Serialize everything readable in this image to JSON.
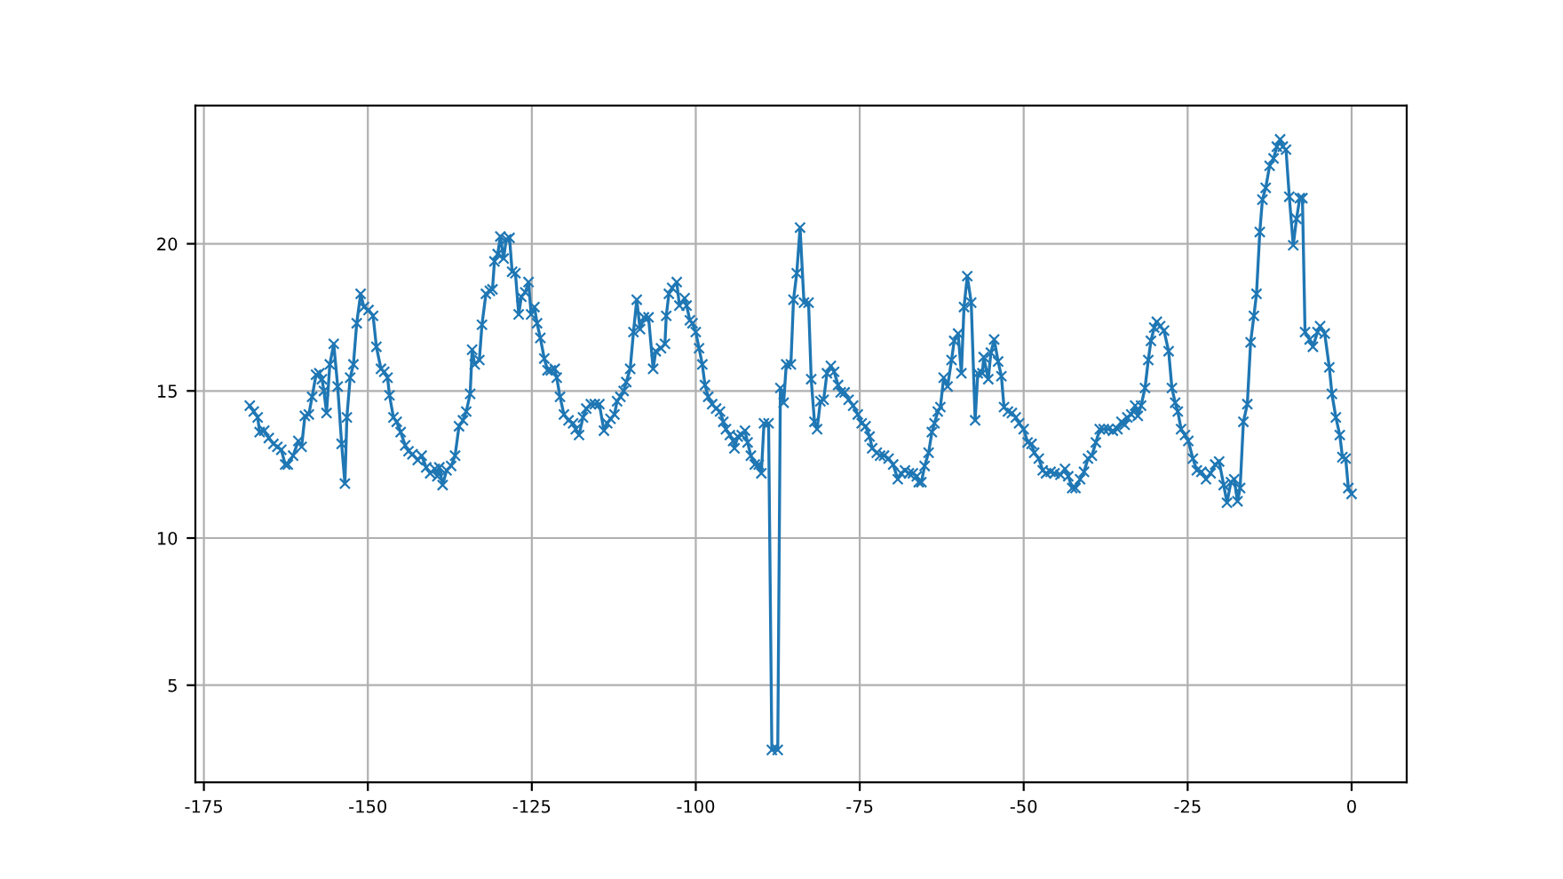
{
  "chart_data": {
    "type": "line",
    "marker": "cross",
    "line_style": "solid",
    "grid": true,
    "xlim": [
      -176.3,
      8.4
    ],
    "ylim": [
      1.7,
      24.7
    ],
    "xticks": [
      -175,
      -150,
      -125,
      -100,
      -75,
      -50,
      -25,
      0
    ],
    "yticks": [
      5,
      10,
      15,
      20
    ],
    "series": [
      {
        "color": "#1f77b4",
        "x": [
          -168.0,
          -167.4,
          -166.8,
          -166.5,
          -165.8,
          -165.1,
          -164.4,
          -163.8,
          -163.2,
          -162.6,
          -162.2,
          -161.4,
          -160.6,
          -160.1,
          -159.6,
          -159.0,
          -158.5,
          -157.9,
          -157.4,
          -157.0,
          -156.7,
          -156.3,
          -155.8,
          -155.2,
          -154.6,
          -154.0,
          -153.5,
          -153.2,
          -152.7,
          -152.2,
          -151.7,
          -151.1,
          -150.6,
          -149.9,
          -149.2,
          -148.7,
          -148.0,
          -147.5,
          -147.0,
          -146.7,
          -146.1,
          -145.6,
          -145.0,
          -144.3,
          -143.8,
          -143.2,
          -142.4,
          -141.8,
          -141.1,
          -140.5,
          -139.8,
          -139.4,
          -139.1,
          -138.6,
          -138.0,
          -137.3,
          -136.7,
          -136.1,
          -135.5,
          -135.0,
          -134.4,
          -134.1,
          -133.7,
          -133.0,
          -132.6,
          -132.0,
          -131.4,
          -131.0,
          -130.7,
          -130.2,
          -129.8,
          -129.3,
          -128.9,
          -128.4,
          -128.0,
          -127.5,
          -127.0,
          -126.6,
          -126.0,
          -125.5,
          -125.1,
          -124.6,
          -124.2,
          -123.7,
          -123.1,
          -122.6,
          -122.1,
          -121.5,
          -121.2,
          -120.7,
          -120.1,
          -119.4,
          -118.7,
          -118.3,
          -117.8,
          -117.2,
          -116.7,
          -116.0,
          -115.4,
          -114.7,
          -114.0,
          -113.5,
          -113.0,
          -112.4,
          -112.0,
          -111.5,
          -111.0,
          -110.6,
          -110.0,
          -109.5,
          -109.0,
          -108.5,
          -107.9,
          -107.2,
          -106.5,
          -106.1,
          -105.3,
          -104.7,
          -104.5,
          -104.1,
          -103.6,
          -102.9,
          -102.5,
          -101.7,
          -101.4,
          -100.9,
          -100.5,
          -100.0,
          -99.5,
          -99.0,
          -98.6,
          -98.1,
          -97.5,
          -96.9,
          -96.3,
          -95.8,
          -95.4,
          -94.8,
          -94.3,
          -94.1,
          -93.6,
          -93.0,
          -92.5,
          -92.1,
          -91.6,
          -91.0,
          -90.4,
          -90.0,
          -89.6,
          -88.9,
          -88.4,
          -87.5,
          -87.1,
          -86.6,
          -86.2,
          -85.5,
          -85.1,
          -84.6,
          -84.1,
          -83.5,
          -82.8,
          -82.4,
          -81.9,
          -81.5,
          -81.0,
          -80.5,
          -80.0,
          -79.4,
          -78.9,
          -78.3,
          -77.9,
          -77.3,
          -76.7,
          -76.0,
          -75.3,
          -74.7,
          -74.1,
          -73.5,
          -73.1,
          -72.4,
          -71.9,
          -71.3,
          -70.6,
          -69.9,
          -69.2,
          -68.7,
          -68.1,
          -67.5,
          -66.9,
          -66.3,
          -66.0,
          -65.6,
          -65.1,
          -64.5,
          -64.0,
          -63.6,
          -63.1,
          -62.7,
          -62.2,
          -61.6,
          -61.0,
          -60.6,
          -60.0,
          -59.5,
          -59.1,
          -58.6,
          -58.0,
          -57.4,
          -57.0,
          -56.3,
          -56.1,
          -55.4,
          -55.0,
          -54.5,
          -53.9,
          -53.4,
          -53.0,
          -52.4,
          -51.8,
          -51.2,
          -50.7,
          -50.0,
          -49.4,
          -48.8,
          -48.4,
          -47.7,
          -47.1,
          -46.6,
          -45.9,
          -45.3,
          -44.4,
          -43.7,
          -43.2,
          -42.6,
          -42.1,
          -41.4,
          -40.8,
          -40.2,
          -39.6,
          -39.0,
          -38.4,
          -37.8,
          -37.1,
          -36.4,
          -35.7,
          -35.1,
          -34.6,
          -34.2,
          -33.6,
          -33.0,
          -32.6,
          -32.1,
          -31.5,
          -31.0,
          -30.6,
          -30.1,
          -29.7,
          -29.2,
          -28.6,
          -27.9,
          -27.4,
          -26.9,
          -26.5,
          -26.0,
          -25.4,
          -24.9,
          -24.2,
          -23.6,
          -22.9,
          -22.2,
          -21.5,
          -20.8,
          -20.2,
          -19.5,
          -19.0,
          -18.4,
          -17.9,
          -17.4,
          -17.0,
          -16.5,
          -15.9,
          -15.4,
          -14.9,
          -14.5,
          -14.0,
          -13.6,
          -13.1,
          -12.5,
          -11.9,
          -11.4,
          -10.9,
          -10.5,
          -10.0,
          -9.5,
          -8.9,
          -8.4,
          -7.9,
          -7.5,
          -7.1,
          -6.4,
          -5.9,
          -5.2,
          -4.8,
          -4.1,
          -3.4,
          -3.0,
          -2.4,
          -1.8,
          -1.4,
          -0.9,
          -0.5,
          0.0
        ],
        "values": [
          14.5,
          14.3,
          14.1,
          13.6,
          13.65,
          13.4,
          13.2,
          13.1,
          13.0,
          12.5,
          12.5,
          12.8,
          13.3,
          13.1,
          14.15,
          14.2,
          14.8,
          15.55,
          15.6,
          15.4,
          15.0,
          14.25,
          15.9,
          16.6,
          15.15,
          13.2,
          11.85,
          14.1,
          15.45,
          15.9,
          17.3,
          18.3,
          17.85,
          17.75,
          17.55,
          16.5,
          15.75,
          15.65,
          15.45,
          14.85,
          14.1,
          13.95,
          13.6,
          13.15,
          12.95,
          12.85,
          12.65,
          12.8,
          12.4,
          12.2,
          12.35,
          12.1,
          12.4,
          11.8,
          12.3,
          12.45,
          12.8,
          13.8,
          14.0,
          14.3,
          14.9,
          16.4,
          15.9,
          16.05,
          17.25,
          18.3,
          18.4,
          18.45,
          19.4,
          19.65,
          20.25,
          19.5,
          20.15,
          20.2,
          19.05,
          19.0,
          17.6,
          18.2,
          18.35,
          18.7,
          17.6,
          17.85,
          17.3,
          16.8,
          16.1,
          15.7,
          15.7,
          15.75,
          15.45,
          14.8,
          14.2,
          14.0,
          13.9,
          13.7,
          13.5,
          14.1,
          14.4,
          14.55,
          14.55,
          14.55,
          13.65,
          13.9,
          14.05,
          14.2,
          14.65,
          14.8,
          15.0,
          15.3,
          15.75,
          17.0,
          18.1,
          17.1,
          17.5,
          17.5,
          15.75,
          16.35,
          16.45,
          16.6,
          17.55,
          18.3,
          18.5,
          18.7,
          17.9,
          18.15,
          17.9,
          17.4,
          17.3,
          17.0,
          16.45,
          15.9,
          15.2,
          14.8,
          14.55,
          14.4,
          14.3,
          13.95,
          13.7,
          13.5,
          13.3,
          13.05,
          13.45,
          13.5,
          13.65,
          13.25,
          12.8,
          12.5,
          12.5,
          12.2,
          13.9,
          13.9,
          2.8,
          2.8,
          15.1,
          14.6,
          15.9,
          15.9,
          18.1,
          19.0,
          20.55,
          18.0,
          18.0,
          15.4,
          13.95,
          13.7,
          14.65,
          14.7,
          15.6,
          15.85,
          15.65,
          15.2,
          14.95,
          14.95,
          14.7,
          14.5,
          14.2,
          13.9,
          13.8,
          13.45,
          13.05,
          12.9,
          12.8,
          12.8,
          12.7,
          12.5,
          12.0,
          12.2,
          12.3,
          12.2,
          12.2,
          12.1,
          11.9,
          11.9,
          12.45,
          12.9,
          13.6,
          13.9,
          14.3,
          14.45,
          15.45,
          15.15,
          16.05,
          16.7,
          16.95,
          15.6,
          17.85,
          18.9,
          18.0,
          14.0,
          15.6,
          15.6,
          16.15,
          15.4,
          16.3,
          16.75,
          16.0,
          15.5,
          14.45,
          14.3,
          14.25,
          14.1,
          13.9,
          13.7,
          13.25,
          13.2,
          12.9,
          12.7,
          12.3,
          12.2,
          12.25,
          12.2,
          12.15,
          12.35,
          12.1,
          11.7,
          11.7,
          12.0,
          12.25,
          12.7,
          12.8,
          13.25,
          13.7,
          13.7,
          13.7,
          13.65,
          13.7,
          13.95,
          13.85,
          14.1,
          14.2,
          14.5,
          14.15,
          14.5,
          15.1,
          16.05,
          16.7,
          17.15,
          17.35,
          17.2,
          17.05,
          16.35,
          15.1,
          14.6,
          14.3,
          13.7,
          13.5,
          13.3,
          12.7,
          12.3,
          12.25,
          12.0,
          12.2,
          12.5,
          12.6,
          11.8,
          11.2,
          11.9,
          12.0,
          11.25,
          11.7,
          13.95,
          14.55,
          16.65,
          17.55,
          18.3,
          20.4,
          21.5,
          21.9,
          22.65,
          22.9,
          23.3,
          23.55,
          23.3,
          23.2,
          21.6,
          19.95,
          20.85,
          21.55,
          21.55,
          17.0,
          16.75,
          16.5,
          17.0,
          17.2,
          16.95,
          15.8,
          14.9,
          14.1,
          13.5,
          12.75,
          12.7,
          11.7,
          11.5
        ]
      }
    ]
  }
}
